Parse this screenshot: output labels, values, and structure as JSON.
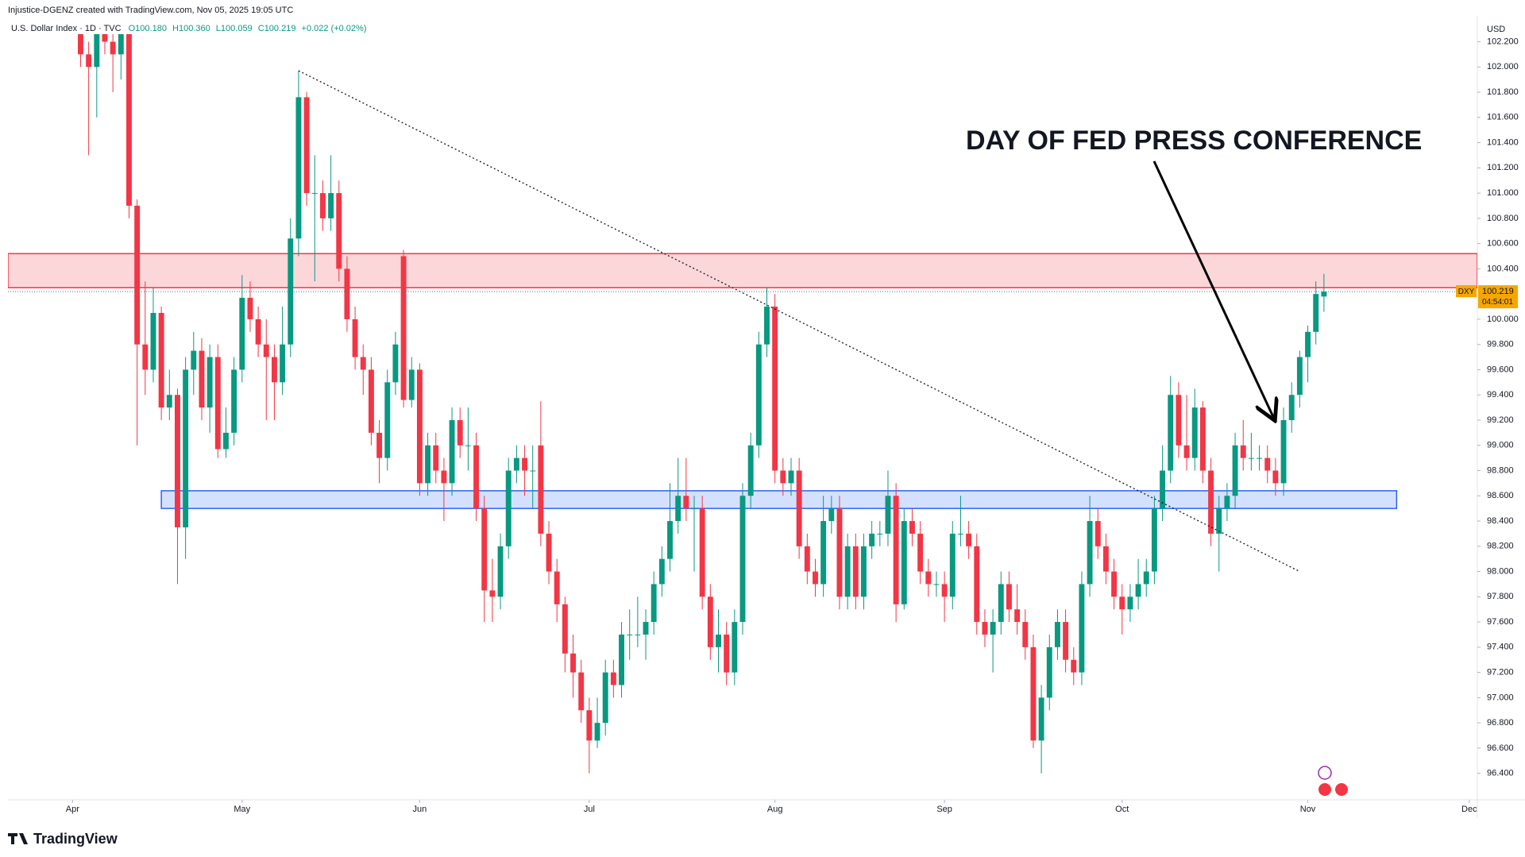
{
  "chart_data": {
    "type": "candlestick",
    "credit": "Injustice-DGENZ created with TradingView.com, Nov 05, 2025 19:05 UTC",
    "legend": {
      "name": "U.S. Dollar Index · 1D · TVC",
      "open": "O100.180",
      "high": "H100.360",
      "low": "L100.059",
      "close": "C100.219",
      "change": "+0.022 (+0.02%)"
    },
    "currency": "USD",
    "symbol": "DXY",
    "last_label": "100.219",
    "countdown": "04:54:01",
    "annotation": "DAY OF FED PRESS CONFERENCE",
    "brand": "TradingView",
    "up_color": "#089981",
    "down_color": "#f23645",
    "grid": false,
    "xlim": [
      -9,
      173
    ],
    "xticks": [
      {
        "value": -1,
        "label": "Apr"
      },
      {
        "value": 20,
        "label": "May"
      },
      {
        "value": 42,
        "label": "Jun"
      },
      {
        "value": 63,
        "label": "Jul"
      },
      {
        "value": 86,
        "label": "Aug"
      },
      {
        "value": 107,
        "label": "Sep"
      },
      {
        "value": 129,
        "label": "Oct"
      },
      {
        "value": 152,
        "label": "Nov"
      },
      {
        "value": 172,
        "label": "Dec"
      }
    ],
    "ylim": [
      96.19,
      102.26
    ],
    "yticks": [
      {
        "value": 96.4,
        "label": "96.400"
      },
      {
        "value": 96.6,
        "label": "96.600"
      },
      {
        "value": 96.8,
        "label": "96.800"
      },
      {
        "value": 97.0,
        "label": "97.000"
      },
      {
        "value": 97.2,
        "label": "97.200"
      },
      {
        "value": 97.4,
        "label": "97.400"
      },
      {
        "value": 97.6,
        "label": "97.600"
      },
      {
        "value": 97.8,
        "label": "97.800"
      },
      {
        "value": 98.0,
        "label": "98.000"
      },
      {
        "value": 98.2,
        "label": "98.200"
      },
      {
        "value": 98.4,
        "label": "98.400"
      },
      {
        "value": 98.6,
        "label": "98.600"
      },
      {
        "value": 98.8,
        "label": "98.800"
      },
      {
        "value": 99.0,
        "label": "99.000"
      },
      {
        "value": 99.2,
        "label": "99.200"
      },
      {
        "value": 99.4,
        "label": "99.400"
      },
      {
        "value": 99.6,
        "label": "99.600"
      },
      {
        "value": 99.8,
        "label": "99.800"
      },
      {
        "value": 100.0,
        "label": "100.000"
      },
      {
        "value": 100.4,
        "label": "100.400"
      },
      {
        "value": 100.6,
        "label": "100.600"
      },
      {
        "value": 100.8,
        "label": "100.800"
      },
      {
        "value": 101.0,
        "label": "101.000"
      },
      {
        "value": 101.2,
        "label": "101.200"
      },
      {
        "value": 101.4,
        "label": "101.400"
      },
      {
        "value": 101.6,
        "label": "101.600"
      },
      {
        "value": 101.8,
        "label": "101.800"
      },
      {
        "value": 102.0,
        "label": "102.000"
      },
      {
        "value": 102.2,
        "label": "102.200"
      }
    ],
    "zones": [
      {
        "x": [
          -9,
          173
        ],
        "y": [
          100.25,
          100.52
        ],
        "color": "#f23645"
      },
      {
        "x": [
          10,
          163
        ],
        "y": [
          98.5,
          98.64
        ],
        "color": "#2962ff"
      }
    ],
    "trendline": {
      "x": [
        27,
        151
      ],
      "y": [
        101.97,
        98.0
      ]
    },
    "candles": [
      [
        102.3,
        102.4,
        102.0,
        102.1
      ],
      [
        102.1,
        102.2,
        101.3,
        102.0
      ],
      [
        102.0,
        102.4,
        101.6,
        102.3
      ],
      [
        102.3,
        102.4,
        102.1,
        102.2
      ],
      [
        102.2,
        102.3,
        101.8,
        102.1
      ],
      [
        102.1,
        102.4,
        101.9,
        102.35
      ],
      [
        102.35,
        102.4,
        100.8,
        100.9
      ],
      [
        100.9,
        100.95,
        99.0,
        99.8
      ],
      [
        99.8,
        100.3,
        99.4,
        99.6
      ],
      [
        99.6,
        100.25,
        99.5,
        100.05
      ],
      [
        100.05,
        100.1,
        99.2,
        99.3
      ],
      [
        99.3,
        99.6,
        99.2,
        99.4
      ],
      [
        99.4,
        99.45,
        97.9,
        98.35
      ],
      [
        98.35,
        99.7,
        98.1,
        99.6
      ],
      [
        99.6,
        99.9,
        99.4,
        99.75
      ],
      [
        99.75,
        99.85,
        99.2,
        99.3
      ],
      [
        99.3,
        99.8,
        99.1,
        99.7
      ],
      [
        99.7,
        99.8,
        98.9,
        98.97
      ],
      [
        98.97,
        99.3,
        98.9,
        99.1
      ],
      [
        99.1,
        99.7,
        99.0,
        99.6
      ],
      [
        99.6,
        100.35,
        99.5,
        100.17
      ],
      [
        100.17,
        100.3,
        99.9,
        100.0
      ],
      [
        100.0,
        100.1,
        99.7,
        99.8
      ],
      [
        99.8,
        100.0,
        99.2,
        99.7
      ],
      [
        99.7,
        99.8,
        99.2,
        99.5
      ],
      [
        99.5,
        100.1,
        99.4,
        99.8
      ],
      [
        99.8,
        100.8,
        99.7,
        100.64
      ],
      [
        100.64,
        101.97,
        100.5,
        101.76
      ],
      [
        101.76,
        101.8,
        100.9,
        101.0
      ],
      [
        101.0,
        101.3,
        100.3,
        101.0
      ],
      [
        101.0,
        101.1,
        100.7,
        100.8
      ],
      [
        100.8,
        101.3,
        100.7,
        101.0
      ],
      [
        101.0,
        101.1,
        100.3,
        100.4
      ],
      [
        100.4,
        100.5,
        99.9,
        100.0
      ],
      [
        100.0,
        100.1,
        99.6,
        99.7
      ],
      [
        99.7,
        99.8,
        99.4,
        99.6
      ],
      [
        99.6,
        99.7,
        99.0,
        99.1
      ],
      [
        99.1,
        99.2,
        98.7,
        98.9
      ],
      [
        98.9,
        99.6,
        98.8,
        99.5
      ],
      [
        99.5,
        99.9,
        99.4,
        99.8
      ],
      [
        100.5,
        100.55,
        99.3,
        99.36
      ],
      [
        99.36,
        99.7,
        99.3,
        99.6
      ],
      [
        99.6,
        99.65,
        98.6,
        98.7
      ],
      [
        98.7,
        99.1,
        98.6,
        99.0
      ],
      [
        99.0,
        99.1,
        98.7,
        98.8
      ],
      [
        98.8,
        98.9,
        98.4,
        98.7
      ],
      [
        98.7,
        99.3,
        98.6,
        99.2
      ],
      [
        99.2,
        99.3,
        98.9,
        99.0
      ],
      [
        99.0,
        99.3,
        98.8,
        99.0
      ],
      [
        99.0,
        99.1,
        98.4,
        98.5
      ],
      [
        98.5,
        98.6,
        97.6,
        97.85
      ],
      [
        97.85,
        98.1,
        97.6,
        97.8
      ],
      [
        97.8,
        98.3,
        97.7,
        98.2
      ],
      [
        98.2,
        98.9,
        98.1,
        98.8
      ],
      [
        98.8,
        99.0,
        98.7,
        98.9
      ],
      [
        98.9,
        99.0,
        98.6,
        98.8
      ],
      [
        98.8,
        99.0,
        98.5,
        98.8
      ],
      [
        99.0,
        99.35,
        98.2,
        98.3
      ],
      [
        98.3,
        98.4,
        97.9,
        98.0
      ],
      [
        98.0,
        98.1,
        97.6,
        97.74
      ],
      [
        97.74,
        97.8,
        97.2,
        97.35
      ],
      [
        97.35,
        97.5,
        97.0,
        97.2
      ],
      [
        97.2,
        97.3,
        96.8,
        96.9
      ],
      [
        96.9,
        97.0,
        96.4,
        96.66
      ],
      [
        96.66,
        97.0,
        96.6,
        96.8
      ],
      [
        96.8,
        97.3,
        96.7,
        97.2
      ],
      [
        97.2,
        97.3,
        97.0,
        97.1
      ],
      [
        97.1,
        97.6,
        97.0,
        97.5
      ],
      [
        97.5,
        97.7,
        97.3,
        97.5
      ],
      [
        97.5,
        97.8,
        97.4,
        97.5
      ],
      [
        97.5,
        97.7,
        97.3,
        97.6
      ],
      [
        97.6,
        98.0,
        97.5,
        97.9
      ],
      [
        97.9,
        98.2,
        97.8,
        98.1
      ],
      [
        98.1,
        98.7,
        98.0,
        98.4
      ],
      [
        98.4,
        98.9,
        98.3,
        98.6
      ],
      [
        98.6,
        98.9,
        98.4,
        98.5
      ],
      [
        98.5,
        98.6,
        98.0,
        98.5
      ],
      [
        98.5,
        98.6,
        97.7,
        97.8
      ],
      [
        97.8,
        97.9,
        97.3,
        97.4
      ],
      [
        97.4,
        97.7,
        97.2,
        97.5
      ],
      [
        97.5,
        97.6,
        97.1,
        97.2
      ],
      [
        97.2,
        97.7,
        97.1,
        97.6
      ],
      [
        97.6,
        98.7,
        97.5,
        98.6
      ],
      [
        98.6,
        99.1,
        98.5,
        99.0
      ],
      [
        99.0,
        99.9,
        98.9,
        99.8
      ],
      [
        99.8,
        100.25,
        99.7,
        100.1
      ],
      [
        100.1,
        100.2,
        98.7,
        98.8
      ],
      [
        98.8,
        98.9,
        98.6,
        98.7
      ],
      [
        98.7,
        98.9,
        98.6,
        98.8
      ],
      [
        98.8,
        98.9,
        98.1,
        98.2
      ],
      [
        98.2,
        98.3,
        97.9,
        98.0
      ],
      [
        98.0,
        98.1,
        97.8,
        97.9
      ],
      [
        97.9,
        98.6,
        97.8,
        98.4
      ],
      [
        98.4,
        98.6,
        98.3,
        98.5
      ],
      [
        98.5,
        98.6,
        97.7,
        97.8
      ],
      [
        97.8,
        98.3,
        97.7,
        98.2
      ],
      [
        98.2,
        98.3,
        97.7,
        97.8
      ],
      [
        97.8,
        98.3,
        97.7,
        98.2
      ],
      [
        98.2,
        98.4,
        98.1,
        98.3
      ],
      [
        98.3,
        98.4,
        98.2,
        98.3
      ],
      [
        98.3,
        98.8,
        98.2,
        98.6
      ],
      [
        98.6,
        98.7,
        97.6,
        97.74
      ],
      [
        97.74,
        98.5,
        97.7,
        98.4
      ],
      [
        98.4,
        98.5,
        98.2,
        98.3
      ],
      [
        98.3,
        98.4,
        97.9,
        98.0
      ],
      [
        98.0,
        98.1,
        97.8,
        97.9
      ],
      [
        97.9,
        98.0,
        97.8,
        97.9
      ],
      [
        97.9,
        98.0,
        97.6,
        97.8
      ],
      [
        97.8,
        98.4,
        97.7,
        98.3
      ],
      [
        98.3,
        98.6,
        98.2,
        98.3
      ],
      [
        98.3,
        98.4,
        98.1,
        98.2
      ],
      [
        98.2,
        98.3,
        97.5,
        97.6
      ],
      [
        97.6,
        97.7,
        97.4,
        97.5
      ],
      [
        97.5,
        97.7,
        97.2,
        97.6
      ],
      [
        97.6,
        98.0,
        97.5,
        97.9
      ],
      [
        97.9,
        98.0,
        97.6,
        97.7
      ],
      [
        97.7,
        97.9,
        97.5,
        97.6
      ],
      [
        97.6,
        97.7,
        97.3,
        97.4
      ],
      [
        97.4,
        97.5,
        96.6,
        96.66
      ],
      [
        96.66,
        97.1,
        96.4,
        97.0
      ],
      [
        97.0,
        97.5,
        96.9,
        97.4
      ],
      [
        97.4,
        97.7,
        97.3,
        97.6
      ],
      [
        97.6,
        97.7,
        97.2,
        97.3
      ],
      [
        97.3,
        97.4,
        97.1,
        97.2
      ],
      [
        97.2,
        98.0,
        97.1,
        97.9
      ],
      [
        97.9,
        98.6,
        97.8,
        98.4
      ],
      [
        98.4,
        98.5,
        98.1,
        98.2
      ],
      [
        98.2,
        98.3,
        97.9,
        98.0
      ],
      [
        98.0,
        98.1,
        97.7,
        97.8
      ],
      [
        97.8,
        97.9,
        97.5,
        97.7
      ],
      [
        97.7,
        97.9,
        97.6,
        97.8
      ],
      [
        97.8,
        98.1,
        97.7,
        97.9
      ],
      [
        97.9,
        98.1,
        97.8,
        98.0
      ],
      [
        98.0,
        98.6,
        97.9,
        98.5
      ],
      [
        98.5,
        99.0,
        98.4,
        98.8
      ],
      [
        98.8,
        99.55,
        98.7,
        99.4
      ],
      [
        99.4,
        99.5,
        98.9,
        99.0
      ],
      [
        99.0,
        99.4,
        98.8,
        98.9
      ],
      [
        98.9,
        99.45,
        98.8,
        99.3
      ],
      [
        99.3,
        99.35,
        98.7,
        98.8
      ],
      [
        98.8,
        98.9,
        98.2,
        98.3
      ],
      [
        98.3,
        98.6,
        98.0,
        98.5
      ],
      [
        98.5,
        98.7,
        98.4,
        98.6
      ],
      [
        98.6,
        99.1,
        98.5,
        99.0
      ],
      [
        99.0,
        99.2,
        98.8,
        98.9
      ],
      [
        98.9,
        99.1,
        98.8,
        98.9
      ],
      [
        98.9,
        99.0,
        98.8,
        98.9
      ],
      [
        98.9,
        99.0,
        98.7,
        98.8
      ],
      [
        98.8,
        98.9,
        98.6,
        98.7
      ],
      [
        98.7,
        99.3,
        98.6,
        99.2
      ],
      [
        99.2,
        99.5,
        99.1,
        99.4
      ],
      [
        99.4,
        99.75,
        99.3,
        99.7
      ],
      [
        99.7,
        99.95,
        99.5,
        99.9
      ],
      [
        99.9,
        100.3,
        99.8,
        100.2
      ],
      [
        100.18,
        100.36,
        100.059,
        100.219
      ]
    ]
  }
}
